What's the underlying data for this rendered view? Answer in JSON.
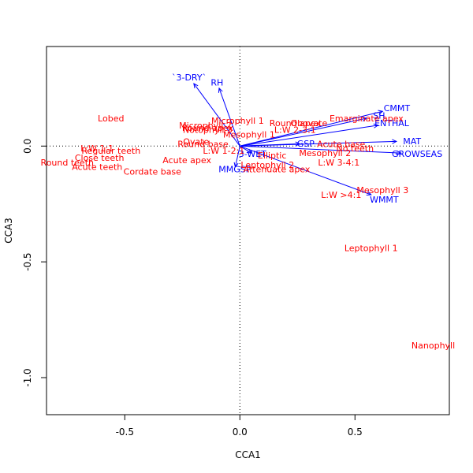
{
  "chart_data": {
    "type": "scatter",
    "title": "",
    "xlabel": "CCA1",
    "ylabel": "CCA3",
    "xlim": [
      -0.84,
      0.91
    ],
    "ylim": [
      -1.16,
      0.43
    ],
    "xticks": [
      -0.5,
      0.0,
      0.5
    ],
    "xtick_labels": [
      "-0.5",
      "0.0",
      "0.5"
    ],
    "yticks": [
      -1.0,
      -0.5,
      0.0
    ],
    "ytick_labels": [
      "-1.0",
      "-0.5",
      "0.0"
    ],
    "grid": false,
    "reference_lines": {
      "x": 0,
      "y": 0,
      "style": "dotted"
    },
    "colors": {
      "site_labels": "#ff0000",
      "env_vectors": "#0000ff",
      "axes": "#000000"
    },
    "site_labels": [
      {
        "label": "Lobed",
        "x": -0.56,
        "y": 0.12
      },
      {
        "label": "L:W 1:1",
        "x": -0.62,
        "y": -0.01
      },
      {
        "label": "Regular teeth",
        "x": -0.56,
        "y": -0.02
      },
      {
        "label": "Close teeth",
        "x": -0.61,
        "y": -0.05
      },
      {
        "label": "Round teeth",
        "x": -0.75,
        "y": -0.07
      },
      {
        "label": "Acute teeth",
        "x": -0.62,
        "y": -0.09
      },
      {
        "label": "Cordate base",
        "x": -0.38,
        "y": -0.11
      },
      {
        "label": "Acute apex",
        "x": -0.23,
        "y": -0.06
      },
      {
        "label": "Microphyll 2",
        "x": -0.15,
        "y": 0.09
      },
      {
        "label": "Round apex",
        "x": -0.14,
        "y": 0.08
      },
      {
        "label": "Notophyll 3",
        "x": -0.14,
        "y": 0.07
      },
      {
        "label": "Microphyll 1",
        "x": -0.01,
        "y": 0.11
      },
      {
        "label": "Mesophyll 1",
        "x": 0.04,
        "y": 0.05
      },
      {
        "label": "Ovate",
        "x": -0.19,
        "y": 0.02
      },
      {
        "label": "Round base",
        "x": -0.16,
        "y": 0.01
      },
      {
        "label": "L:W 1-2:1",
        "x": -0.07,
        "y": -0.02
      },
      {
        "label": "Round apex",
        "x": 0.24,
        "y": 0.1
      },
      {
        "label": "Obovate",
        "x": 0.3,
        "y": 0.1
      },
      {
        "label": "L:W 2-3:1",
        "x": 0.24,
        "y": 0.07
      },
      {
        "label": "Emarginate apex",
        "x": 0.55,
        "y": 0.12
      },
      {
        "label": "Acute base",
        "x": 0.44,
        "y": 0.01
      },
      {
        "label": "No teeth",
        "x": 0.5,
        "y": -0.01
      },
      {
        "label": "Mesophyll 2",
        "x": 0.37,
        "y": -0.03
      },
      {
        "label": "L:W 3-4:1",
        "x": 0.43,
        "y": -0.07
      },
      {
        "label": "Elliptic",
        "x": 0.14,
        "y": -0.04
      },
      {
        "label": "Leptophyll 2",
        "x": 0.12,
        "y": -0.08
      },
      {
        "label": "Attenuate apex",
        "x": 0.16,
        "y": -0.1
      },
      {
        "label": "Mesophyll 3",
        "x": 0.62,
        "y": -0.19
      },
      {
        "label": "L:W >4:1",
        "x": 0.44,
        "y": -0.21
      },
      {
        "label": "Leptophyll 1",
        "x": 0.57,
        "y": -0.44
      },
      {
        "label": "Nanophyll",
        "x": 0.84,
        "y": -0.86
      }
    ],
    "env_vectors": [
      {
        "label": "`3-DRY`",
        "x": -0.2,
        "y": 0.27
      },
      {
        "label": "RH",
        "x": -0.09,
        "y": 0.25
      },
      {
        "label": "CMMT",
        "x": 0.62,
        "y": 0.15
      },
      {
        "label": "SH",
        "x": 0.55,
        "y": 0.12
      },
      {
        "label": "ENTHAL",
        "x": 0.6,
        "y": 0.09
      },
      {
        "label": "GSP",
        "x": 0.26,
        "y": 0.01
      },
      {
        "label": "MAT",
        "x": 0.68,
        "y": 0.02
      },
      {
        "label": "GROWSEAS",
        "x": 0.7,
        "y": -0.03
      },
      {
        "label": "3-WET",
        "x": 0.05,
        "y": -0.03
      },
      {
        "label": "MMGSP",
        "x": -0.02,
        "y": -0.09
      },
      {
        "label": "WMMT",
        "x": 0.57,
        "y": -0.21
      }
    ]
  }
}
